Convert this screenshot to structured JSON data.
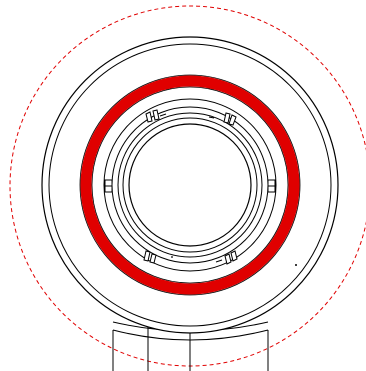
{
  "drawing": {
    "colors": {
      "line": "#000000",
      "highlight_ring": "#e00000",
      "envelope_dashed": "#e00000",
      "background": "#ffffff"
    },
    "labels": []
  }
}
